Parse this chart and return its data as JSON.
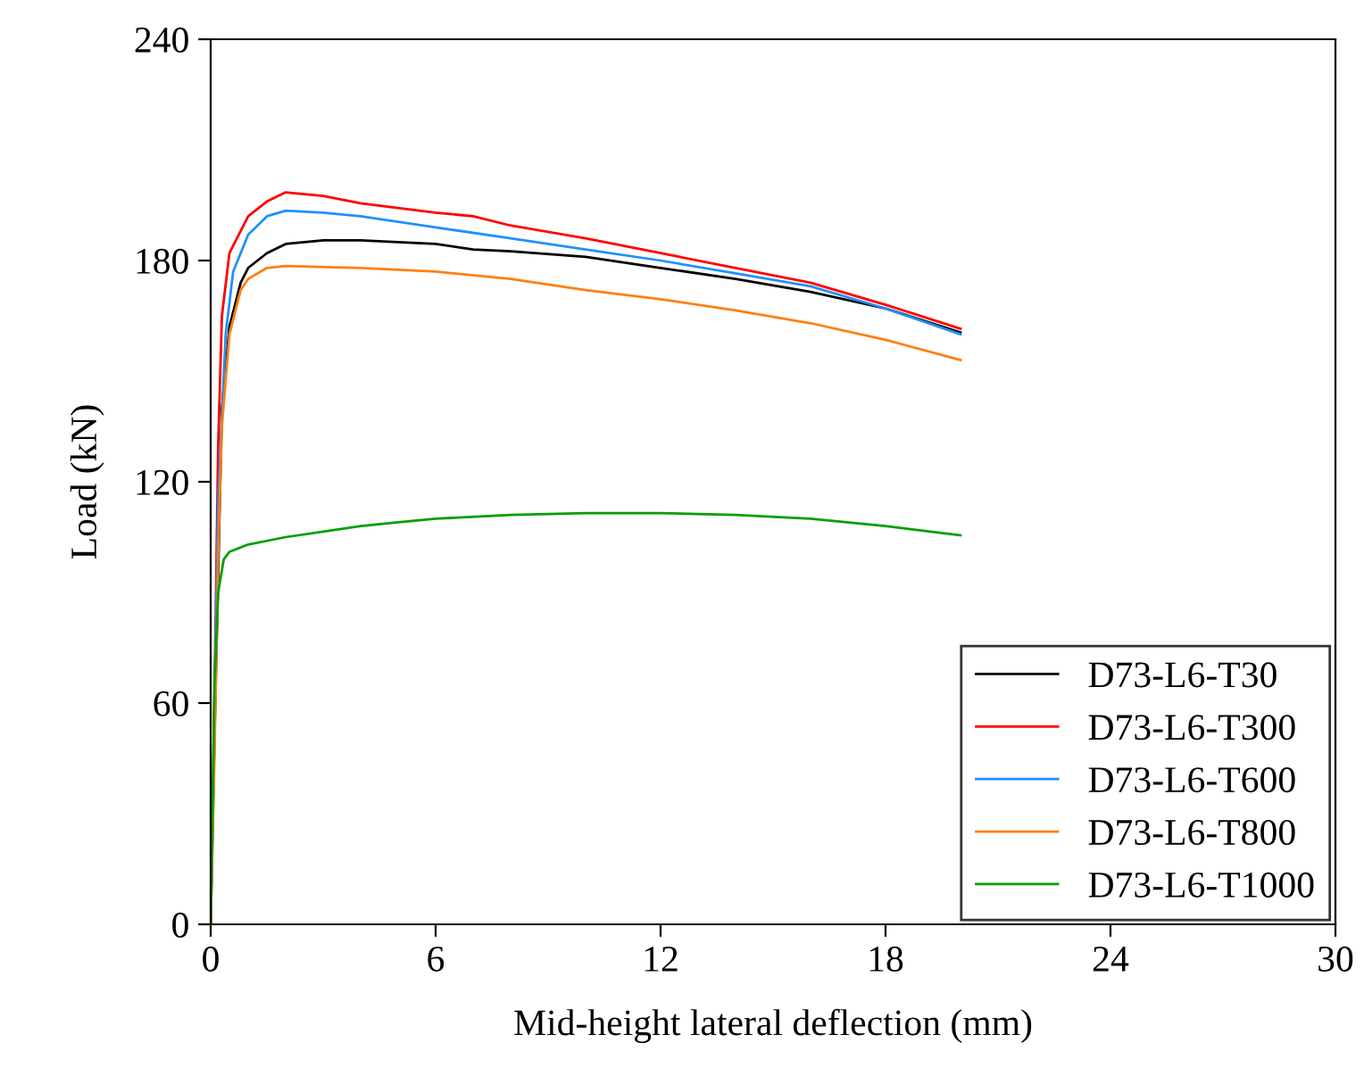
{
  "chart_data": {
    "type": "line",
    "xlabel": "Mid-height lateral deflection (mm)",
    "ylabel": "Load (kN)",
    "xlim": [
      0,
      30
    ],
    "ylim": [
      0,
      240
    ],
    "xticks": [
      0,
      6,
      12,
      18,
      24,
      30
    ],
    "yticks": [
      0,
      60,
      120,
      180,
      240
    ],
    "grid": false,
    "legend": "bottom right",
    "marker": "none",
    "line_style": "solid",
    "series": [
      {
        "name": "D73-L6-T30",
        "color": "#000000",
        "x": [
          0,
          0.1,
          0.3,
          0.5,
          0.8,
          1,
          1.5,
          2,
          3,
          4,
          5,
          6,
          7,
          8,
          10,
          12,
          14,
          16,
          18,
          20
        ],
        "values": [
          0,
          50,
          140,
          162,
          174,
          178,
          182,
          184.5,
          185.5,
          185.5,
          185,
          184.5,
          183,
          182.5,
          181,
          178,
          175,
          171.5,
          167,
          160.5
        ]
      },
      {
        "name": "D73-L6-T300",
        "color": "#ff0000",
        "x": [
          0,
          0.1,
          0.2,
          0.3,
          0.5,
          1,
          1.5,
          2,
          3,
          4,
          6,
          7,
          8,
          10,
          12,
          14,
          16,
          18,
          20
        ],
        "values": [
          0,
          60,
          130,
          165,
          182,
          192,
          196,
          198.5,
          197.5,
          195.5,
          193,
          192,
          189.5,
          186,
          182,
          178,
          174,
          168,
          161.5
        ]
      },
      {
        "name": "D73-L6-T600",
        "color": "#1e90ff",
        "x": [
          0,
          0.2,
          0.4,
          0.6,
          1,
          1.5,
          2,
          3,
          4,
          6,
          8,
          10,
          12,
          14,
          16,
          18,
          20
        ],
        "values": [
          0,
          115,
          160,
          177,
          187,
          192,
          193.5,
          193,
          192,
          189,
          186,
          183,
          180,
          176.5,
          173,
          167,
          160
        ]
      },
      {
        "name": "D73-L6-T800",
        "color": "#ff7f0e",
        "x": [
          0,
          0.1,
          0.2,
          0.3,
          0.5,
          0.8,
          1,
          1.5,
          2,
          4,
          6,
          8,
          10,
          12,
          14,
          16,
          18,
          20
        ],
        "values": [
          0,
          45,
          100,
          135,
          160,
          172,
          175,
          178,
          178.5,
          178,
          177,
          175,
          172,
          169.5,
          166.5,
          163,
          158.5,
          153
        ]
      },
      {
        "name": "D73-L6-T1000",
        "color": "#00a000",
        "x": [
          0,
          0.05,
          0.1,
          0.2,
          0.35,
          0.5,
          1,
          2,
          3,
          4,
          5,
          6,
          8,
          10,
          12,
          14,
          16,
          18,
          20
        ],
        "values": [
          0,
          30,
          65,
          90,
          99,
          101,
          103,
          105,
          106.5,
          108,
          109,
          110,
          111,
          111.5,
          111.5,
          111,
          110,
          108,
          105.5
        ]
      }
    ]
  }
}
